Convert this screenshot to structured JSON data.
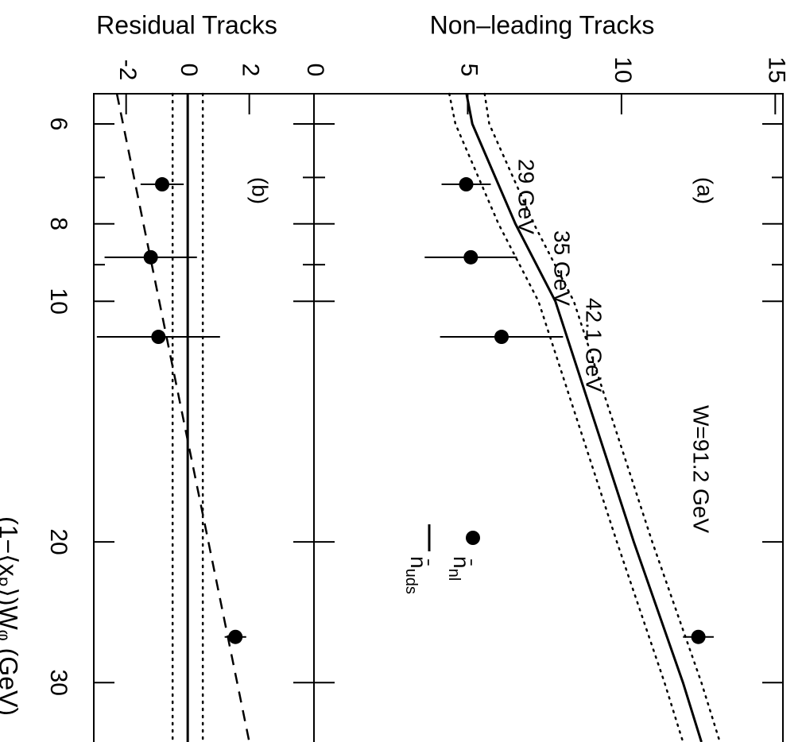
{
  "chart_data": [
    {
      "type": "scatter",
      "title": "Non–leading Tracks",
      "x": [
        7.14,
        8.81,
        11.08,
        26.3
      ],
      "values": [
        4.95,
        5.1,
        6.1,
        12.5
      ],
      "errors": [
        0.8,
        1.5,
        2.0,
        0.5
      ],
      "lines": [
        {
          "style": "solid",
          "x": [
            5.5,
            6,
            8,
            10,
            20,
            30,
            35.6
          ],
          "values": [
            4.96,
            5.15,
            6.55,
            7.85,
            10.4,
            12.0,
            12.6
          ]
        },
        {
          "style": "dotted",
          "x": [
            5.5,
            6,
            8,
            10,
            20,
            30,
            35.6
          ],
          "values": [
            5.55,
            5.7,
            7.15,
            8.45,
            11.0,
            12.6,
            13.2
          ]
        },
        {
          "style": "dotted",
          "x": [
            5.5,
            6,
            8,
            10,
            20,
            30,
            35.6
          ],
          "values": [
            4.4,
            4.6,
            6.0,
            7.3,
            9.85,
            11.4,
            12.0
          ]
        }
      ],
      "annotations": [
        "(a)",
        "29 GeV",
        "35 GeV",
        "42.1 GeV",
        "W=91.2 GeV"
      ],
      "legend": [
        {
          "marker": "dot",
          "base": "n̄",
          "sub": "nl"
        },
        {
          "marker": "line",
          "base": "n̄",
          "sub": "uds"
        }
      ],
      "ylim": [
        0,
        15.25
      ],
      "yticks": [
        0,
        5,
        10,
        15
      ]
    },
    {
      "type": "scatter",
      "title": "Residual Tracks",
      "xlabel": "(1−⟨xₚ⟩)Wᵩ (GeV)",
      "x": [
        7.14,
        8.81,
        11.08,
        26.3
      ],
      "values": [
        -0.83,
        -1.2,
        -0.95,
        1.55
      ],
      "errors": [
        0.7,
        1.5,
        2.0,
        0.35
      ],
      "lines": [
        {
          "style": "solid",
          "x": [
            5.5,
            35.6
          ],
          "values": [
            0,
            0
          ]
        },
        {
          "style": "dotted",
          "x": [
            5.5,
            35.6
          ],
          "values": [
            0.49,
            0.49
          ]
        },
        {
          "style": "dotted",
          "x": [
            5.5,
            35.6
          ],
          "values": [
            -0.49,
            -0.49
          ]
        },
        {
          "style": "dashed",
          "x": [
            5.5,
            35.6
          ],
          "values": [
            -2.3,
            2.0
          ]
        }
      ],
      "annotations": [
        "(b)"
      ],
      "xlim": [
        5.5,
        35.6
      ],
      "xscale": "log",
      "xticks": [
        6,
        8,
        10,
        20,
        30
      ],
      "xminor": [
        7,
        9
      ],
      "ylim": [
        -3.05,
        4.1
      ],
      "yticks": [
        -2,
        0,
        2
      ]
    }
  ]
}
